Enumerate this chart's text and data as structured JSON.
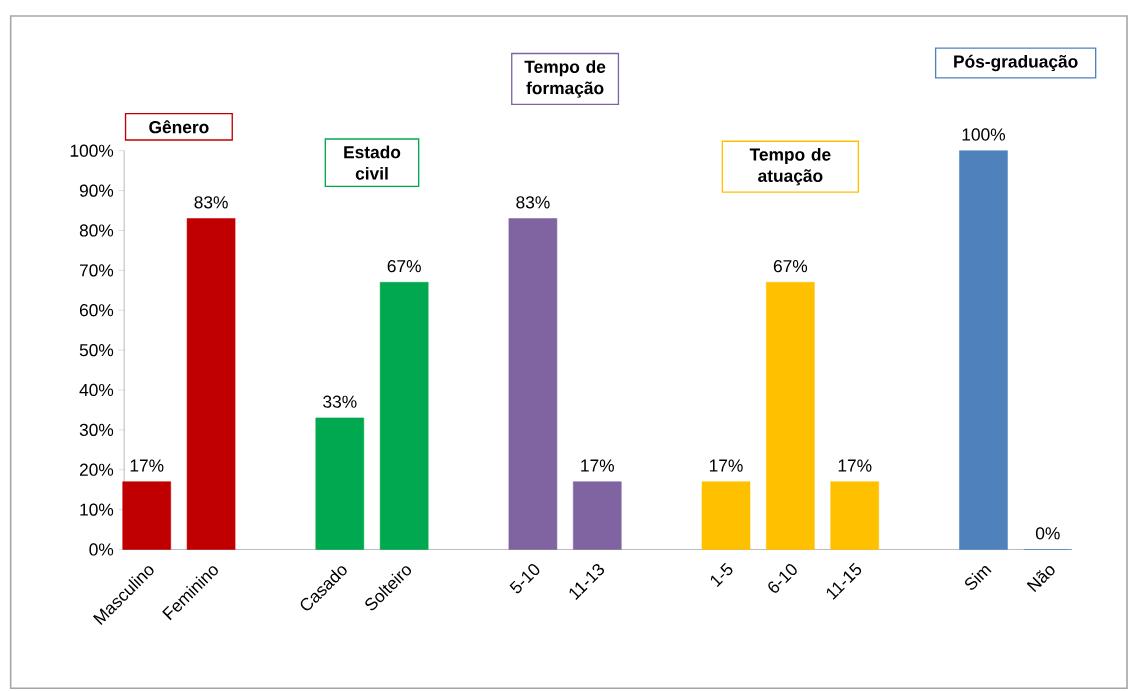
{
  "chart_data": {
    "type": "bar",
    "categories": [
      "Masculino",
      "Feminino",
      null,
      "Casado",
      "Solteiro",
      null,
      "5-10",
      "11-13",
      null,
      "1-5",
      "6-10",
      "11-15",
      null,
      "Sim",
      "Não"
    ],
    "values": [
      17,
      83,
      null,
      33,
      67,
      null,
      83,
      17,
      null,
      17,
      67,
      17,
      null,
      100,
      0
    ],
    "colors": [
      "#c00000",
      "#c00000",
      null,
      "#00a84f",
      "#00a84f",
      null,
      "#8064a2",
      "#8064a2",
      null,
      "#ffc000",
      "#ffc000",
      "#ffc000",
      null,
      "#4f81bd",
      "#4f81bd"
    ],
    "value_labels": [
      "17%",
      "83%",
      null,
      "33%",
      "67%",
      null,
      "83%",
      "17%",
      null,
      "17%",
      "67%",
      "17%",
      null,
      "100%",
      "0%"
    ],
    "ylim": [
      0,
      100
    ],
    "yticks": [
      {
        "value": 0,
        "label": "0%"
      },
      {
        "value": 10,
        "label": "10%"
      },
      {
        "value": 20,
        "label": "20%"
      },
      {
        "value": 30,
        "label": "30%"
      },
      {
        "value": 40,
        "label": "40%"
      },
      {
        "value": 50,
        "label": "50%"
      },
      {
        "value": 60,
        "label": "60%"
      },
      {
        "value": 70,
        "label": "70%"
      },
      {
        "value": 80,
        "label": "80%"
      },
      {
        "value": 90,
        "label": "90%"
      },
      {
        "value": 100,
        "label": "100%"
      }
    ],
    "annotations": [
      "Gênero",
      "Estado civil",
      "Tempo de formação",
      "Tempo de atuação",
      "Pós-graduação"
    ],
    "grid": false
  }
}
